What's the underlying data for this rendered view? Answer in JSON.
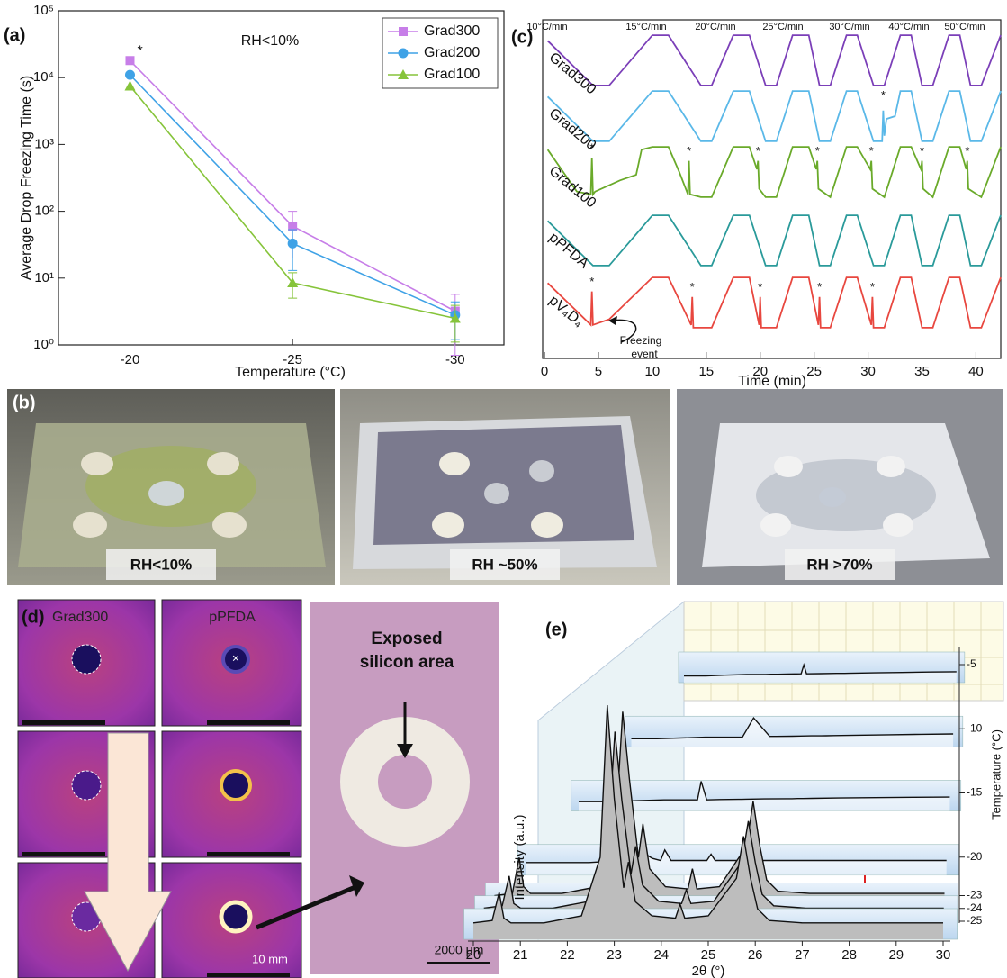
{
  "chart_data": [
    {
      "type": "line",
      "panel_label": "(a)",
      "annotation": "RH<10%",
      "star": "*",
      "x_label": "Temperature (°C)",
      "y_label": "Average Drop Freezing Time (s)",
      "x": [
        -20,
        -25,
        -30
      ],
      "xlim": [
        -17.8,
        -31.5
      ],
      "xticks": [
        -20,
        -25,
        -30
      ],
      "log_y": true,
      "ylim": [
        1,
        100000
      ],
      "yticks": [
        {
          "value": 1,
          "label": "10⁰"
        },
        {
          "value": 10,
          "label": "10¹"
        },
        {
          "value": 100,
          "label": "10²"
        },
        {
          "value": 1000,
          "label": "10³"
        },
        {
          "value": 10000,
          "label": "10⁴"
        },
        {
          "value": 100000,
          "label": "10⁵"
        }
      ],
      "legend": "upper right",
      "series": [
        {
          "name": "Grad300",
          "color": "#c77ee8",
          "marker": "square",
          "values": [
            18000,
            60,
            3.2
          ],
          "errors": [
            0,
            40,
            2.5
          ]
        },
        {
          "name": "Grad200",
          "color": "#3fa2e6",
          "marker": "circle",
          "values": [
            11000,
            33,
            2.8
          ],
          "errors": [
            0,
            20,
            1.6
          ]
        },
        {
          "name": "Grad100",
          "color": "#86c43a",
          "marker": "triangle",
          "values": [
            7500,
            8.5,
            2.5
          ],
          "errors": [
            0,
            3.5,
            1.4
          ]
        }
      ]
    },
    {
      "type": "traces",
      "panel_label": "(c)",
      "x_label": "Time (min)",
      "xlim": [
        0,
        42.3
      ],
      "xticks": [
        0,
        5,
        10,
        15,
        20,
        25,
        30,
        35,
        40
      ],
      "rate_labels": [
        "10°C/min",
        "15°C/min",
        "20°C/min",
        "25°C/min",
        "30°C/min",
        "40°C/min",
        "50°C/min"
      ],
      "star": "*",
      "freezing_label": [
        "Freezing",
        "event"
      ],
      "series": [
        {
          "name": "Grad300",
          "color": "#7b3fb8",
          "x": [
            0.3,
            4.5,
            6,
            10,
            11.5,
            14.5,
            15.5,
            17.5,
            19,
            20.5,
            21.5,
            23,
            24.5,
            25.5,
            26.5,
            28,
            29,
            30.5,
            31.5,
            33,
            34,
            35,
            36,
            37.5,
            38.5,
            39.5,
            40.5,
            42.3
          ],
          "values": [
            0.85,
            0.05,
            0.05,
            0.95,
            0.95,
            0.05,
            0.05,
            0.95,
            0.95,
            0.05,
            0.05,
            0.95,
            0.95,
            0.05,
            0.05,
            0.95,
            0.95,
            0.05,
            0.05,
            0.95,
            0.95,
            0.05,
            0.05,
            0.95,
            0.95,
            0.05,
            0.05,
            0.95
          ],
          "stars": []
        },
        {
          "name": "Grad200",
          "color": "#5ab8e8",
          "x": [
            0.3,
            4.5,
            6,
            10,
            11.5,
            14.5,
            15.5,
            17.5,
            19,
            20.5,
            21.5,
            23,
            24.5,
            25.5,
            26.5,
            28,
            29,
            30.5,
            31.3,
            31.4,
            31.5,
            31.7,
            32.5,
            33,
            34,
            35,
            36,
            37.5,
            38.5,
            39.5,
            40.5,
            42.3
          ],
          "values": [
            0.85,
            0.05,
            0.05,
            0.95,
            0.95,
            0.05,
            0.05,
            0.95,
            0.95,
            0.05,
            0.05,
            0.95,
            0.95,
            0.05,
            0.05,
            0.95,
            0.95,
            0.05,
            0.05,
            0.6,
            0.15,
            0.45,
            0.5,
            0.95,
            0.95,
            0.05,
            0.05,
            0.95,
            0.95,
            0.05,
            0.05,
            0.95
          ],
          "stars": [
            [
              31.4,
              0.8
            ]
          ]
        },
        {
          "name": "Grad100",
          "color": "#6aaa2a",
          "x": [
            0.3,
            3,
            4.3,
            4.4,
            4.5,
            4.7,
            7,
            8.5,
            9,
            10,
            11.5,
            12.5,
            13.3,
            13.4,
            13.5,
            14.5,
            15.5,
            17.5,
            19,
            19.7,
            19.8,
            19.9,
            20.5,
            21.5,
            23,
            24.5,
            25.2,
            25.3,
            25.4,
            26.5,
            28,
            29,
            30.2,
            30.3,
            30.4,
            31.5,
            33,
            34,
            34.9,
            35,
            35.1,
            36,
            37.5,
            38.5,
            39.1,
            39.2,
            39.3,
            40.5,
            42.3
          ],
          "values": [
            0.9,
            0.15,
            0.1,
            0.75,
            0.1,
            0.15,
            0.35,
            0.45,
            0.9,
            0.95,
            0.95,
            0.5,
            0.1,
            0.7,
            0.1,
            0.05,
            0.05,
            0.95,
            0.95,
            0.55,
            0.7,
            0.2,
            0.05,
            0.05,
            0.95,
            0.95,
            0.55,
            0.7,
            0.2,
            0.05,
            0.95,
            0.95,
            0.55,
            0.7,
            0.2,
            0.05,
            0.95,
            0.95,
            0.55,
            0.7,
            0.2,
            0.05,
            0.95,
            0.95,
            0.55,
            0.7,
            0.2,
            0.05,
            0.95
          ],
          "stars": [
            [
              4.4,
              0.85
            ],
            [
              13.4,
              0.8
            ],
            [
              19.8,
              0.8
            ],
            [
              25.3,
              0.8
            ],
            [
              30.3,
              0.8
            ],
            [
              35,
              0.8
            ],
            [
              39.2,
              0.8
            ]
          ]
        },
        {
          "name": "pPFDA",
          "color": "#2a9a9a",
          "x": [
            0.3,
            4.5,
            6,
            10,
            11.5,
            14.5,
            15.5,
            17.5,
            19,
            20.5,
            21.5,
            23,
            24.5,
            25.5,
            26.5,
            28,
            29,
            30.5,
            31.5,
            33,
            34,
            35,
            36,
            37.5,
            38.5,
            39.5,
            40.5,
            42.3
          ],
          "values": [
            0.85,
            0.05,
            0.05,
            0.95,
            0.95,
            0.05,
            0.05,
            0.95,
            0.95,
            0.05,
            0.05,
            0.95,
            0.95,
            0.05,
            0.05,
            0.95,
            0.95,
            0.05,
            0.05,
            0.95,
            0.95,
            0.05,
            0.05,
            0.95,
            0.95,
            0.05,
            0.05,
            0.95
          ],
          "stars": []
        },
        {
          "name": "pV₄D₄",
          "color": "#e8473f",
          "x": [
            0.3,
            4.3,
            4.4,
            4.5,
            6,
            10,
            11.5,
            13.6,
            13.7,
            13.8,
            15.5,
            17.5,
            19,
            19.9,
            20,
            20.1,
            21.5,
            23,
            24.5,
            25.4,
            25.5,
            25.6,
            26.5,
            28,
            29,
            30.3,
            30.4,
            30.5,
            31.5,
            33,
            34,
            35,
            36,
            37.5,
            38.5,
            39.5,
            40.5,
            42.3
          ],
          "values": [
            0.85,
            0.1,
            0.7,
            0.1,
            0.2,
            0.95,
            0.95,
            0.1,
            0.6,
            0.05,
            0.05,
            0.95,
            0.95,
            0.1,
            0.6,
            0.05,
            0.05,
            0.95,
            0.95,
            0.1,
            0.6,
            0.05,
            0.05,
            0.95,
            0.95,
            0.1,
            0.6,
            0.05,
            0.05,
            0.95,
            0.95,
            0.05,
            0.05,
            0.95,
            0.95,
            0.05,
            0.05,
            0.95
          ],
          "stars": [
            [
              4.4,
              0.8
            ],
            [
              13.7,
              0.7
            ],
            [
              20,
              0.7
            ],
            [
              25.5,
              0.7
            ],
            [
              30.4,
              0.7
            ]
          ]
        }
      ]
    },
    {
      "type": "waterfall",
      "panel_label": "(e)",
      "x_label": "2θ (°)",
      "y_label": "Intensity (a.u.)",
      "z_label": "Temperature (°C)",
      "xlim": [
        19.8,
        30.3
      ],
      "xticks": [
        20,
        21,
        22,
        23,
        24,
        25,
        26,
        27,
        28,
        29,
        30
      ],
      "ylim": [
        0,
        12
      ],
      "zticks": [
        -5,
        -10,
        -15,
        -20,
        -23,
        -24,
        -25
      ],
      "x": [
        20,
        20.4,
        20.55,
        20.65,
        20.8,
        21.5,
        22.3,
        22.7,
        22.85,
        23.0,
        23.2,
        23.3,
        23.45,
        23.8,
        24.3,
        24.4,
        24.5,
        25.0,
        25.6,
        25.75,
        25.9,
        26.05,
        26.3,
        27,
        28,
        29,
        30
      ],
      "series": [
        {
          "values": [
            0.5,
            0.5,
            0.5,
            0.5,
            0.5,
            0.55,
            0.6,
            0.6,
            0.6,
            0.6,
            0.62,
            0.62,
            0.62,
            0.63,
            0.65,
            1.3,
            0.65,
            0.66,
            0.68,
            0.68,
            0.68,
            0.69,
            0.7,
            0.72,
            0.75,
            0.78,
            0.8
          ]
        },
        {
          "values": [
            0.5,
            0.5,
            0.5,
            0.5,
            0.5,
            0.55,
            0.6,
            0.6,
            0.6,
            0.6,
            0.6,
            0.6,
            0.6,
            1.8,
            0.65,
            0.65,
            0.65,
            0.66,
            0.68,
            0.68,
            0.68,
            0.69,
            0.7,
            0.72,
            0.75,
            0.78,
            0.8
          ]
        },
        {
          "values": [
            0.5,
            0.5,
            0.5,
            0.5,
            0.5,
            0.55,
            0.6,
            0.6,
            0.6,
            0.6,
            0.6,
            1.6,
            0.6,
            0.62,
            0.63,
            0.63,
            0.64,
            0.65,
            0.66,
            0.66,
            0.67,
            0.67,
            0.68,
            0.7,
            0.72,
            0.74,
            0.75
          ]
        },
        {
          "values": [
            0.6,
            0.6,
            0.6,
            0.6,
            0.6,
            0.6,
            0.7,
            0.8,
            1.0,
            0.8,
            0.7,
            1.2,
            0.7,
            0.7,
            0.7,
            1.0,
            0.7,
            0.7,
            0.7,
            0.7,
            0.7,
            0.7,
            0.7,
            0.7,
            0.7,
            0.7,
            0.7
          ]
        },
        {
          "values": [
            0.8,
            0.9,
            2.5,
            1.2,
            0.9,
            0.9,
            1.2,
            4,
            9,
            6,
            2.5,
            4,
            2,
            1.2,
            1.1,
            2,
            1.1,
            1.2,
            3,
            5,
            3,
            1.5,
            1.0,
            0.9,
            0.9,
            0.9,
            0.9
          ]
        },
        {
          "values": [
            0.8,
            0.9,
            2.2,
            1.0,
            0.8,
            0.8,
            1.1,
            3.8,
            8.5,
            5.5,
            2.3,
            3.5,
            1.8,
            1.1,
            1.0,
            1.6,
            1.0,
            1.1,
            2.8,
            4.6,
            2.8,
            1.4,
            0.9,
            0.8,
            0.8,
            0.8,
            0.8
          ]
        },
        {
          "values": [
            0.7,
            0.8,
            2,
            0.9,
            0.7,
            0.7,
            1.0,
            3.5,
            10,
            6,
            2.2,
            3.3,
            1.6,
            1.0,
            0.9,
            1.5,
            0.9,
            1.0,
            2.6,
            4.4,
            2.6,
            1.3,
            0.8,
            0.7,
            0.7,
            0.7,
            0.7
          ]
        }
      ]
    }
  ],
  "panel_b": {
    "panel_label": "(b)",
    "photo_labels": [
      "RH<10%",
      "RH ~50%",
      "RH >70%"
    ]
  },
  "panel_d": {
    "panel_label": "(d)",
    "column_labels": [
      "Grad300",
      "pPFDA"
    ],
    "callout": [
      "Exposed",
      "silicon area"
    ],
    "scale_small": "10 mm",
    "scale_large": "2000 μm"
  }
}
